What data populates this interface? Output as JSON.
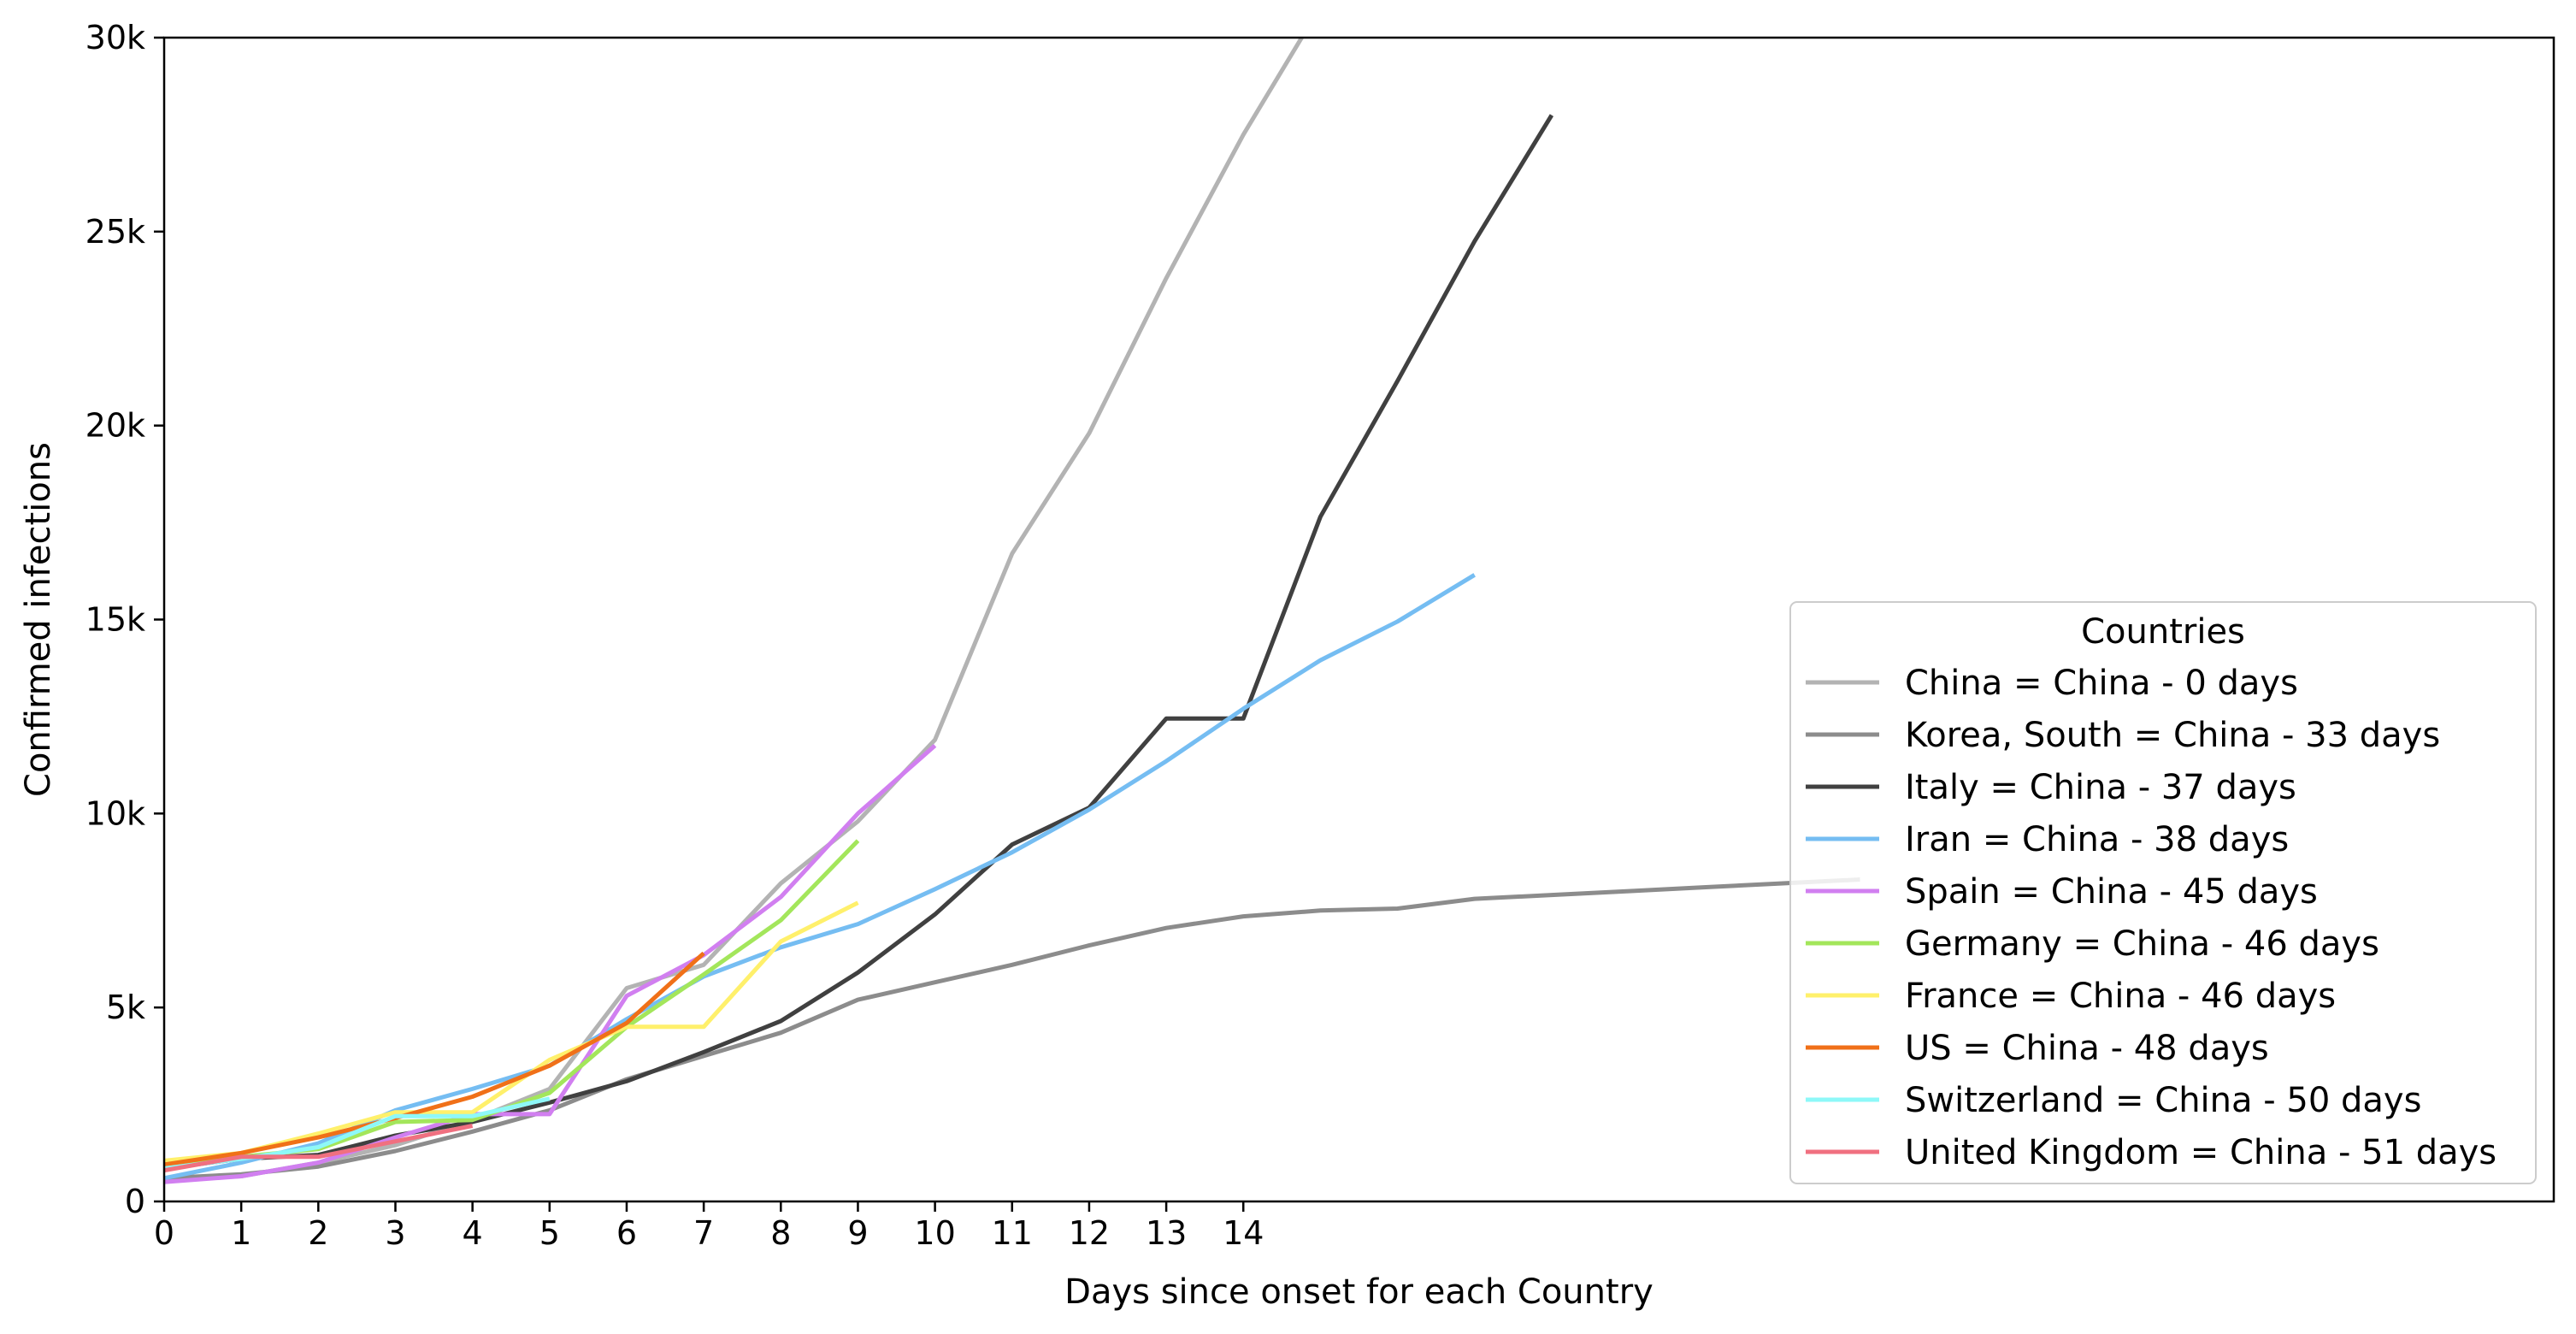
{
  "chart_data": {
    "type": "line",
    "title": "",
    "xlabel": "Days since onset for each Country",
    "ylabel": "Confirmed infections",
    "xlim": [
      0,
      31
    ],
    "ylim": [
      0,
      30000
    ],
    "x_ticks": [
      0,
      1,
      2,
      3,
      4,
      5,
      6,
      7,
      8,
      9,
      10,
      11,
      12,
      13,
      14
    ],
    "y_ticks": [
      {
        "value": 0,
        "label": "0"
      },
      {
        "value": 5000,
        "label": "5k"
      },
      {
        "value": 10000,
        "label": "10k"
      },
      {
        "value": 15000,
        "label": "15k"
      },
      {
        "value": 20000,
        "label": "20k"
      },
      {
        "value": 25000,
        "label": "25k"
      },
      {
        "value": 30000,
        "label": "30k"
      }
    ],
    "grid": false,
    "legend": {
      "title": "Countries",
      "placement": "lower-right"
    },
    "series": [
      {
        "name": "China = China - 0 days",
        "color": "#b3b3b3",
        "x": [
          0,
          1,
          2,
          3,
          4,
          5,
          6,
          7,
          8,
          9,
          10,
          11,
          12,
          13,
          14,
          15
        ],
        "y": [
          550,
          650,
          1000,
          1450,
          2100,
          2900,
          5500,
          6100,
          8200,
          9800,
          11900,
          16700,
          19800,
          23800,
          27500,
          30800
        ]
      },
      {
        "name": "Korea, South = China - 33 days",
        "color": "#8c8c8c",
        "x": [
          0,
          1,
          2,
          3,
          4,
          5,
          6,
          7,
          8,
          9,
          10,
          11,
          12,
          13,
          14,
          15,
          16,
          17,
          18,
          19,
          20,
          21,
          22
        ],
        "y": [
          600,
          700,
          900,
          1300,
          1800,
          2350,
          3150,
          3750,
          4350,
          5200,
          5650,
          6100,
          6600,
          7050,
          7350,
          7500,
          7550,
          7800,
          7900,
          8000,
          8100,
          8200,
          8300
        ]
      },
      {
        "name": "Italy = China - 37 days",
        "color": "#404040",
        "x": [
          0,
          1,
          2,
          3,
          4,
          5,
          6,
          7,
          8,
          9,
          10,
          11,
          12,
          13,
          14,
          15,
          16,
          17,
          18
        ],
        "y": [
          850,
          1100,
          1200,
          1700,
          2050,
          2550,
          3100,
          3850,
          4650,
          5900,
          7400,
          9200,
          10150,
          12450,
          12450,
          17650,
          21150,
          24750,
          28000
        ]
      },
      {
        "name": "Iran = China - 38 days",
        "color": "#75bdf2",
        "x": [
          0,
          1,
          2,
          3,
          4,
          5,
          6,
          7,
          8,
          9,
          10,
          11,
          12,
          13,
          14,
          15,
          16,
          17
        ],
        "y": [
          600,
          1000,
          1500,
          2350,
          2900,
          3500,
          4700,
          5800,
          6550,
          7150,
          8050,
          9000,
          10100,
          11350,
          12700,
          13950,
          14950,
          16150
        ]
      },
      {
        "name": "Spain = China - 45 days",
        "color": "#d17ff0",
        "x": [
          0,
          1,
          2,
          3,
          4,
          5,
          6,
          7,
          8,
          9,
          10
        ],
        "y": [
          500,
          650,
          1000,
          1650,
          2250,
          2250,
          5300,
          6350,
          7850,
          10000,
          11750
        ]
      },
      {
        "name": "Germany = China - 46 days",
        "color": "#a3e65b",
        "x": [
          0,
          1,
          2,
          3,
          4,
          5,
          6,
          7,
          8,
          9
        ],
        "y": [
          900,
          1150,
          1350,
          2050,
          2100,
          2800,
          4500,
          5850,
          7250,
          9300
        ]
      },
      {
        "name": "France = China - 46 days",
        "color": "#fff06b",
        "x": [
          0,
          1,
          2,
          3,
          4,
          5,
          6,
          7,
          8,
          9
        ],
        "y": [
          1050,
          1250,
          1750,
          2300,
          2300,
          3650,
          4500,
          4500,
          6700,
          7700
        ]
      },
      {
        "name": "US = China - 48 days",
        "color": "#f07018",
        "x": [
          0,
          1,
          2,
          3,
          4,
          5,
          6,
          7
        ],
        "y": [
          950,
          1250,
          1650,
          2150,
          2700,
          3500,
          4600,
          6400
        ]
      },
      {
        "name": "Switzerland = China - 50 days",
        "color": "#8ef8f8",
        "x": [
          0,
          1,
          2,
          3,
          4,
          5
        ],
        "y": [
          850,
          1100,
          1400,
          2200,
          2200,
          2650
        ]
      },
      {
        "name": "United Kingdom = China - 51 days",
        "color": "#f07080",
        "x": [
          0,
          1,
          2,
          3,
          4
        ],
        "y": [
          800,
          1150,
          1150,
          1550,
          1950
        ]
      }
    ]
  }
}
